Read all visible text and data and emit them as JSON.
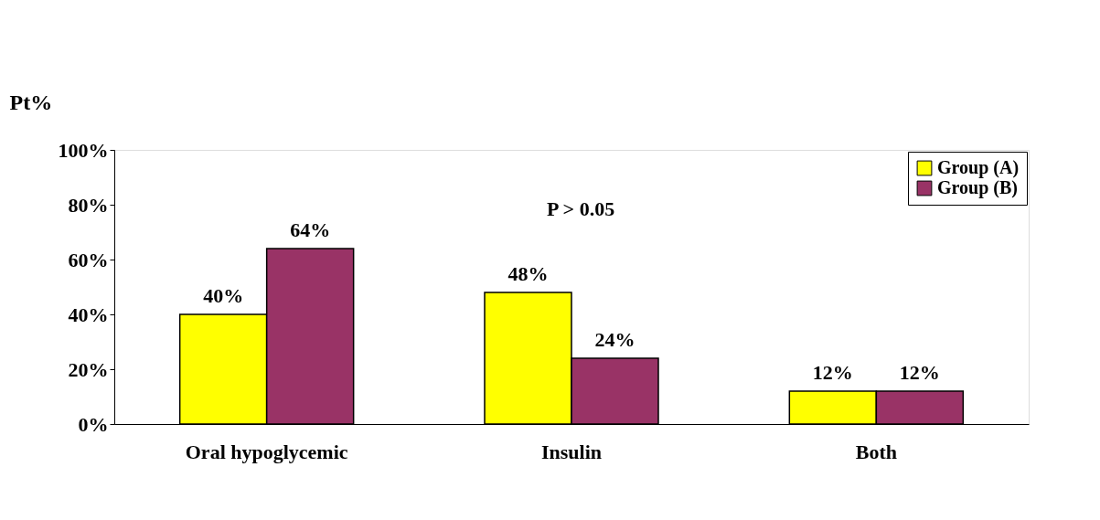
{
  "chart_data": {
    "type": "bar",
    "ylabel": "Pt%",
    "categories": [
      "Oral hypoglycemic",
      "Insulin",
      "Both"
    ],
    "series": [
      {
        "name": "Group (A)",
        "color": "#ffff00",
        "values": [
          40,
          48,
          12
        ],
        "value_labels": [
          "40%",
          "48%",
          "12%"
        ]
      },
      {
        "name": "Group (B)",
        "color": "#993366",
        "values": [
          64,
          24,
          12
        ],
        "value_labels": [
          "64%",
          "24%",
          "12%"
        ]
      }
    ],
    "ylim": [
      0,
      100
    ],
    "yticks": [
      {
        "value": 0,
        "label": "0%"
      },
      {
        "value": 20,
        "label": "20%"
      },
      {
        "value": 40,
        "label": "40%"
      },
      {
        "value": 60,
        "label": "60%"
      },
      {
        "value": 80,
        "label": "80%"
      },
      {
        "value": 100,
        "label": "100%"
      }
    ],
    "grid": false,
    "legend": "top right",
    "annotations": [
      "P > 0.05"
    ]
  }
}
